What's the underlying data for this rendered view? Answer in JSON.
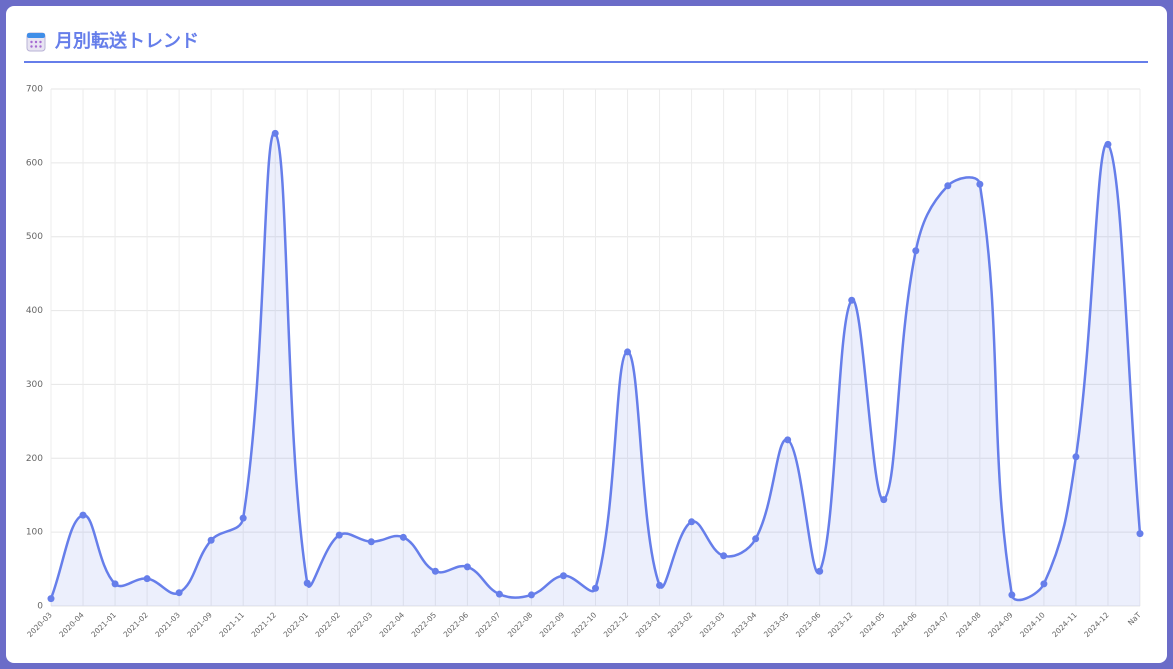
{
  "chart_data": {
    "type": "line",
    "title": "月別転送トレンド",
    "categories": [
      "2020-03",
      "2020-04",
      "2021-01",
      "2021-02",
      "2021-03",
      "2021-09",
      "2021-11",
      "2021-12",
      "2022-01",
      "2022-02",
      "2022-03",
      "2022-04",
      "2022-05",
      "2022-06",
      "2022-07",
      "2022-08",
      "2022-09",
      "2022-10",
      "2022-12",
      "2023-01",
      "2023-02",
      "2023-03",
      "2023-04",
      "2023-05",
      "2023-06",
      "2023-12",
      "2024-05",
      "2024-06",
      "2024-07",
      "2024-08",
      "2024-09",
      "2024-10",
      "2024-11",
      "2024-12",
      "NaT"
    ],
    "values": [
      10,
      123,
      30,
      37,
      18,
      89,
      119,
      640,
      31,
      96,
      87,
      93,
      47,
      53,
      16,
      15,
      41,
      24,
      344,
      28,
      114,
      68,
      91,
      225,
      47,
      414,
      144,
      481,
      569,
      571,
      15,
      30,
      202,
      625,
      98
    ],
    "color": "#667eea",
    "fill": "rgba(102,126,234,0.12)",
    "ylim": [
      0,
      700
    ],
    "yticks": [
      0,
      100,
      200,
      300,
      400,
      500,
      600,
      700
    ],
    "grid": true
  }
}
